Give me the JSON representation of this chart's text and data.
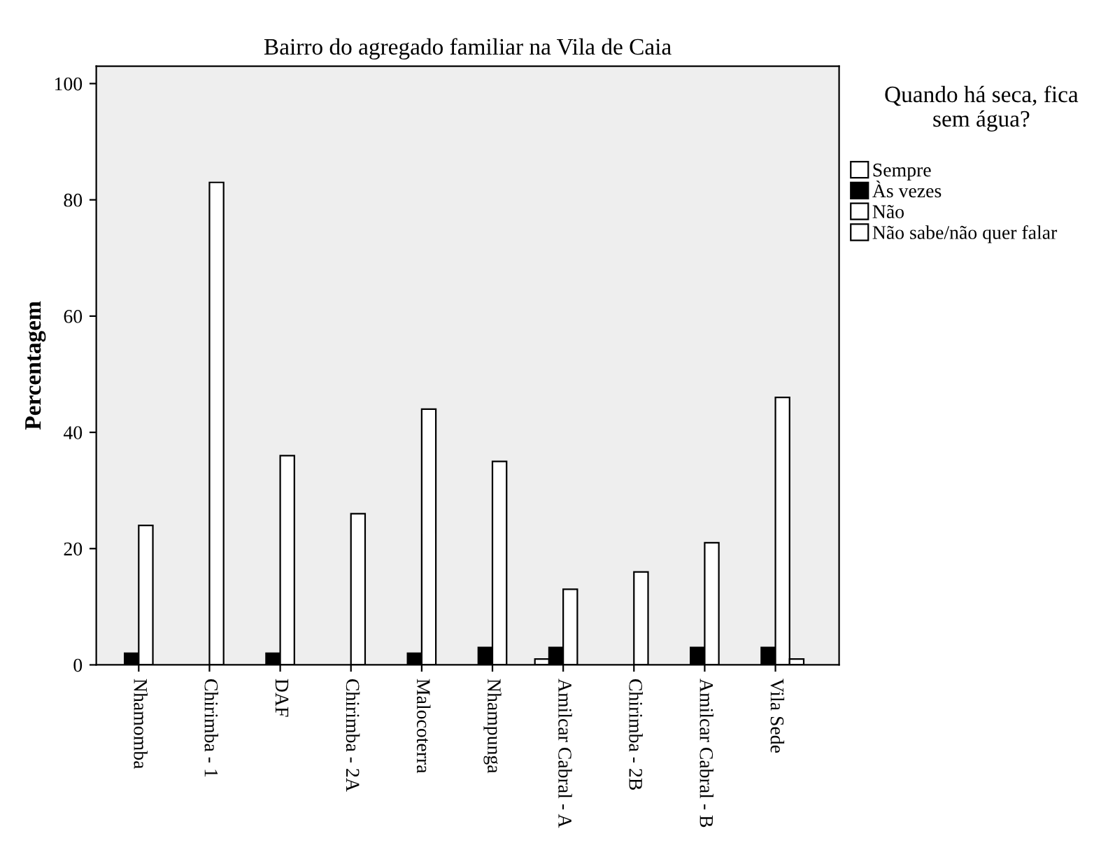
{
  "chart_data": {
    "type": "bar",
    "title": "Bairro do agregado familiar na Vila de Caia",
    "ylabel": "Percentagem",
    "legend_title": "Quando há seca, fica sem água?",
    "categories": [
      "Nhamomba",
      "Chirimba - 1",
      "DAF",
      "Chirimba - 2A",
      "Malocoterra",
      "Nhampunga",
      "Amilcar Cabral - A",
      "Chirimba - 2B",
      "Amilcar Cabral - B",
      "Vila Sede"
    ],
    "series": [
      {
        "name": "Sempre",
        "color": "#ffffff",
        "values": [
          null,
          null,
          null,
          null,
          null,
          null,
          1,
          null,
          null,
          null
        ]
      },
      {
        "name": "Às vezes",
        "color": "#000000",
        "values": [
          2,
          null,
          2,
          null,
          2,
          3,
          3,
          null,
          3,
          3
        ]
      },
      {
        "name": "Não",
        "color": "#ffffff",
        "values": [
          24,
          83,
          36,
          26,
          44,
          35,
          13,
          16,
          21,
          46
        ]
      },
      {
        "name": "Não sabe/não quer falar",
        "color": "#ffffff",
        "values": [
          null,
          null,
          null,
          null,
          null,
          null,
          null,
          null,
          null,
          1
        ]
      }
    ],
    "ylim": [
      0,
      103
    ],
    "yticks": [
      0,
      20,
      40,
      60,
      80,
      100
    ],
    "legend": "right"
  }
}
